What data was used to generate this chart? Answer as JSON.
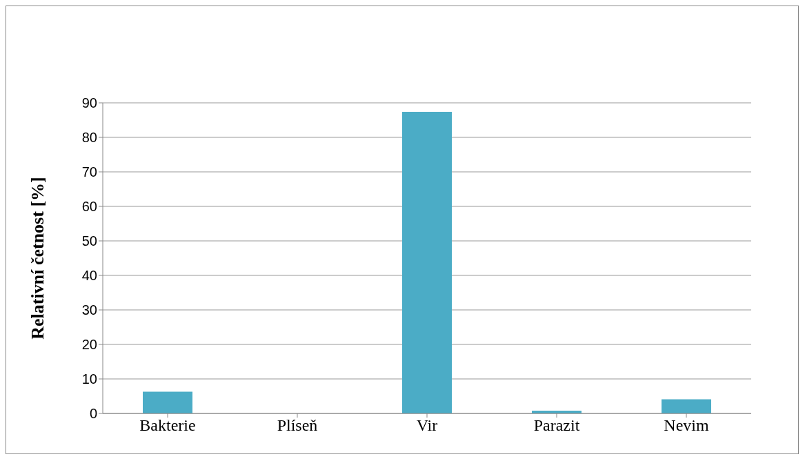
{
  "chart_data": {
    "type": "bar",
    "ylabel": "Relativní četnost [%]",
    "categories": [
      "Bakterie",
      "Plíseň",
      "Vir",
      "Parazit",
      "Nevim"
    ],
    "values": [
      6.3,
      0,
      87.4,
      0.8,
      4.1
    ],
    "color": "#4bacc6",
    "ylim": [
      0,
      90
    ],
    "yticks": [
      0,
      10,
      20,
      30,
      40,
      50,
      60,
      70,
      80,
      90
    ],
    "grid": "y"
  }
}
